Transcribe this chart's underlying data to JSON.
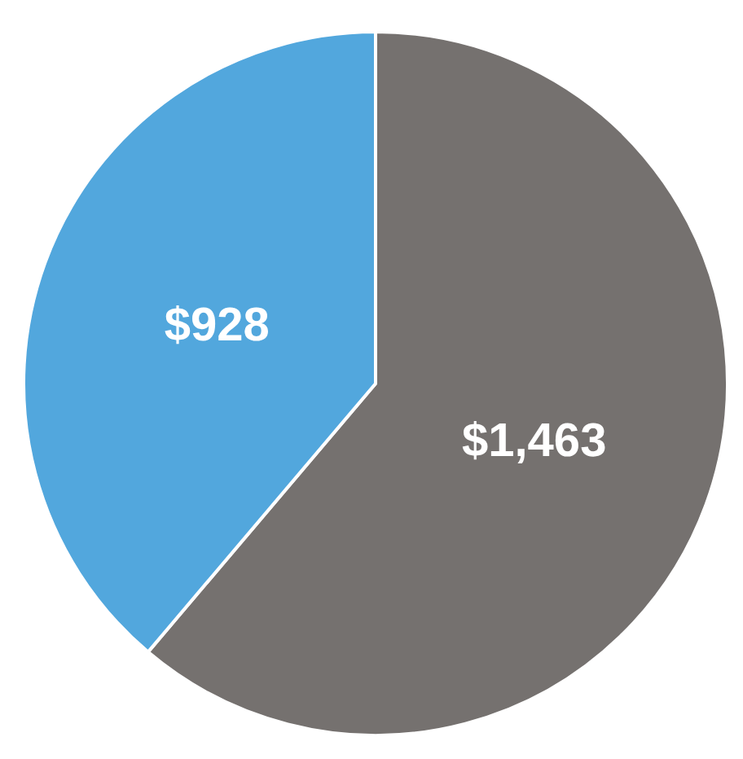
{
  "chart_data": {
    "type": "pie",
    "categories": [
      null,
      null
    ],
    "values": [
      1463,
      928
    ],
    "colors": [
      "#75716f",
      "#52a7dd"
    ],
    "value_labels": [
      "$1,463",
      "$928"
    ]
  }
}
